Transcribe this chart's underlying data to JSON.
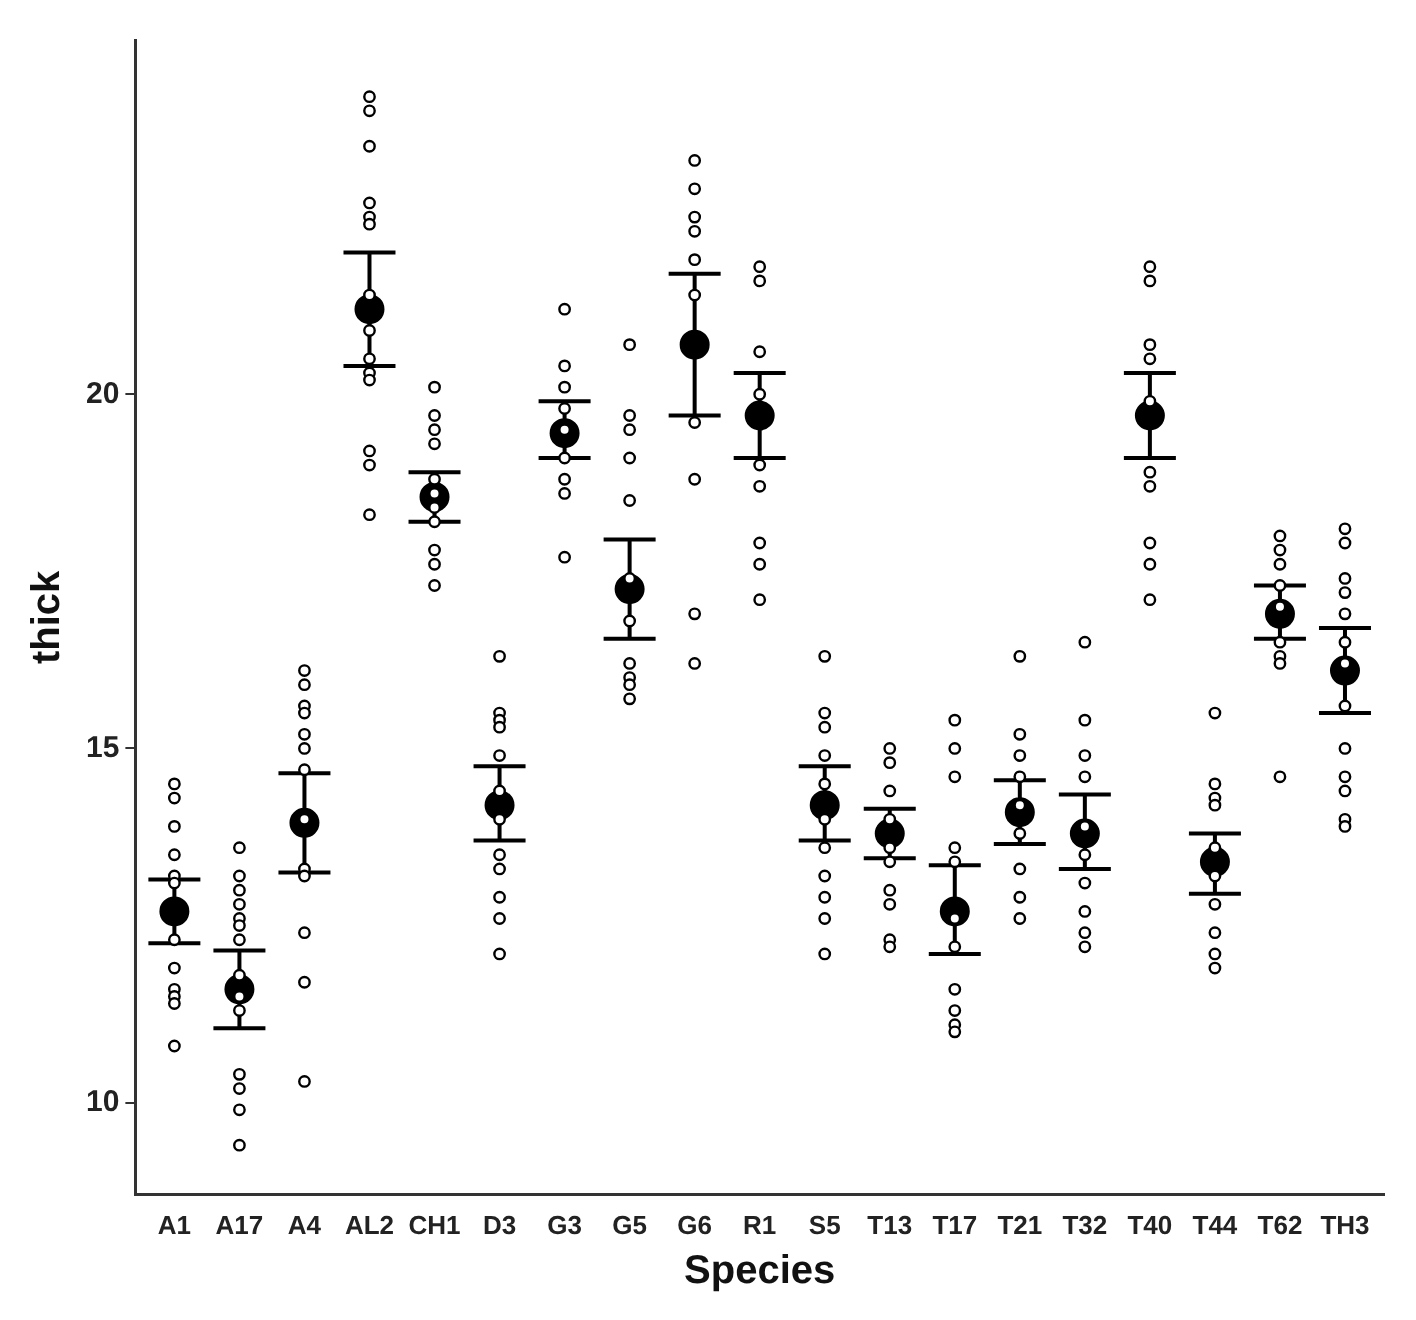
{
  "chart_data": {
    "type": "scatter",
    "xlabel": "Species",
    "ylabel": "thick",
    "categories": [
      "A1",
      "A17",
      "A4",
      "AL2",
      "CH1",
      "D3",
      "G3",
      "G5",
      "G6",
      "R1",
      "S5",
      "T13",
      "T17",
      "T21",
      "T32",
      "T40",
      "T44",
      "T62",
      "TH3"
    ],
    "ylim": [
      8.7,
      25
    ],
    "yticks": [
      10,
      15,
      20
    ],
    "grid": false,
    "legend": false,
    "marker": "circle",
    "series": [
      {
        "color": "#000000",
        "x": [
          "A1",
          "A1",
          "A1",
          "A1",
          "A1",
          "A1",
          "A1",
          "A1",
          "A1",
          "A1",
          "A1",
          "A1",
          "A17",
          "A17",
          "A17",
          "A17",
          "A17",
          "A17",
          "A17",
          "A17",
          "A17",
          "A17",
          "A17",
          "A17",
          "A17",
          "A17",
          "A4",
          "A4",
          "A4",
          "A4",
          "A4",
          "A4",
          "A4",
          "A4",
          "A4",
          "A4",
          "A4",
          "A4",
          "A4",
          "AL2",
          "AL2",
          "AL2",
          "AL2",
          "AL2",
          "AL2",
          "AL2",
          "AL2",
          "AL2",
          "AL2",
          "AL2",
          "AL2",
          "AL2",
          "AL2",
          "CH1",
          "CH1",
          "CH1",
          "CH1",
          "CH1",
          "CH1",
          "CH1",
          "CH1",
          "CH1",
          "CH1",
          "CH1",
          "D3",
          "D3",
          "D3",
          "D3",
          "D3",
          "D3",
          "D3",
          "D3",
          "D3",
          "D3",
          "D3",
          "D3",
          "G3",
          "G3",
          "G3",
          "G3",
          "G3",
          "G3",
          "G3",
          "G3",
          "G3",
          "G5",
          "G5",
          "G5",
          "G5",
          "G5",
          "G5",
          "G5",
          "G5",
          "G5",
          "G5",
          "G5",
          "G6",
          "G6",
          "G6",
          "G6",
          "G6",
          "G6",
          "G6",
          "G6",
          "G6",
          "G6",
          "R1",
          "R1",
          "R1",
          "R1",
          "R1",
          "R1",
          "R1",
          "R1",
          "R1",
          "S5",
          "S5",
          "S5",
          "S5",
          "S5",
          "S5",
          "S5",
          "S5",
          "S5",
          "S5",
          "S5",
          "T13",
          "T13",
          "T13",
          "T13",
          "T13",
          "T13",
          "T13",
          "T13",
          "T13",
          "T13",
          "T17",
          "T17",
          "T17",
          "T17",
          "T17",
          "T17",
          "T17",
          "T17",
          "T17",
          "T17",
          "T17",
          "T21",
          "T21",
          "T21",
          "T21",
          "T21",
          "T21",
          "T21",
          "T21",
          "T21",
          "T32",
          "T32",
          "T32",
          "T32",
          "T32",
          "T32",
          "T32",
          "T32",
          "T32",
          "T32",
          "T40",
          "T40",
          "T40",
          "T40",
          "T40",
          "T40",
          "T40",
          "T40",
          "T40",
          "T40",
          "T44",
          "T44",
          "T44",
          "T44",
          "T44",
          "T44",
          "T44",
          "T44",
          "T44",
          "T44",
          "T62",
          "T62",
          "T62",
          "T62",
          "T62",
          "T62",
          "T62",
          "T62",
          "T62",
          "TH3",
          "TH3",
          "TH3",
          "TH3",
          "TH3",
          "TH3",
          "TH3",
          "TH3",
          "TH3",
          "TH3",
          "TH3",
          "TH3",
          "TH3"
        ],
        "values": [
          14.5,
          14.3,
          13.9,
          13.5,
          13.2,
          13.1,
          12.3,
          11.9,
          11.6,
          11.5,
          11.4,
          10.8,
          13.6,
          13.2,
          13.0,
          12.8,
          12.6,
          12.5,
          12.3,
          11.8,
          11.5,
          11.3,
          10.4,
          10.2,
          9.9,
          9.4,
          16.1,
          15.9,
          15.6,
          15.5,
          15.2,
          15.0,
          14.7,
          14.0,
          13.3,
          13.2,
          12.4,
          11.7,
          10.3,
          24.2,
          24.0,
          23.5,
          22.7,
          22.5,
          22.4,
          21.4,
          20.9,
          20.5,
          20.3,
          20.2,
          19.2,
          19.0,
          18.3,
          20.1,
          19.7,
          19.5,
          19.3,
          18.8,
          18.6,
          18.4,
          18.2,
          17.8,
          17.6,
          17.3,
          16.3,
          15.5,
          15.4,
          15.3,
          14.9,
          14.4,
          14.0,
          13.5,
          13.3,
          12.9,
          12.6,
          12.1,
          21.2,
          20.4,
          20.1,
          19.8,
          19.5,
          19.1,
          18.8,
          18.6,
          17.7,
          20.7,
          19.7,
          19.5,
          19.1,
          18.5,
          17.4,
          16.8,
          16.2,
          16.0,
          15.9,
          15.7,
          23.3,
          22.9,
          22.5,
          22.3,
          21.9,
          21.4,
          19.6,
          18.8,
          16.9,
          16.2,
          21.8,
          21.6,
          20.6,
          20.0,
          19.0,
          18.7,
          17.9,
          17.6,
          17.1,
          16.3,
          15.5,
          15.3,
          14.9,
          14.5,
          14.0,
          13.6,
          13.2,
          12.9,
          12.6,
          12.1,
          15.0,
          14.8,
          14.4,
          14.0,
          13.6,
          13.4,
          13.0,
          12.8,
          12.3,
          12.2,
          15.4,
          15.0,
          14.6,
          13.6,
          13.4,
          12.6,
          12.2,
          11.6,
          11.3,
          11.1,
          11.0,
          16.3,
          15.2,
          14.9,
          14.6,
          14.2,
          13.8,
          13.3,
          12.9,
          12.6,
          16.5,
          15.4,
          14.9,
          14.6,
          13.9,
          13.5,
          13.1,
          12.7,
          12.4,
          12.2,
          21.8,
          21.6,
          20.7,
          20.5,
          19.9,
          18.9,
          18.7,
          17.9,
          17.6,
          17.1,
          15.5,
          14.5,
          14.3,
          14.2,
          13.6,
          13.2,
          12.8,
          12.4,
          12.1,
          11.9,
          18.0,
          17.8,
          17.6,
          17.3,
          17.0,
          16.5,
          16.3,
          16.2,
          14.6,
          18.1,
          17.9,
          17.4,
          17.2,
          16.9,
          16.5,
          16.2,
          15.6,
          15.0,
          14.6,
          14.4,
          14.0,
          13.9
        ]
      },
      {
        "color": "#000000",
        "values": [
          12.7,
          11.6,
          13.95,
          21.2,
          18.55,
          14.2,
          19.45,
          17.25,
          20.7,
          19.7,
          14.2,
          13.8,
          12.7,
          14.1,
          13.8,
          19.7,
          13.4,
          16.9,
          16.1
        ],
        "errors": [
          [
            12.25,
            13.15
          ],
          [
            11.05,
            12.15
          ],
          [
            13.25,
            14.65
          ],
          [
            20.4,
            22.0
          ],
          [
            18.2,
            18.9
          ],
          [
            13.7,
            14.75
          ],
          [
            19.1,
            19.9
          ],
          [
            16.55,
            17.95
          ],
          [
            19.7,
            21.7
          ],
          [
            19.1,
            20.3
          ],
          [
            13.7,
            14.75
          ],
          [
            13.45,
            14.15
          ],
          [
            12.1,
            13.35
          ],
          [
            13.65,
            14.55
          ],
          [
            13.3,
            14.35
          ],
          [
            19.1,
            20.3
          ],
          [
            12.95,
            13.8
          ],
          [
            16.55,
            17.3
          ],
          [
            15.5,
            16.7
          ]
        ]
      }
    ]
  }
}
